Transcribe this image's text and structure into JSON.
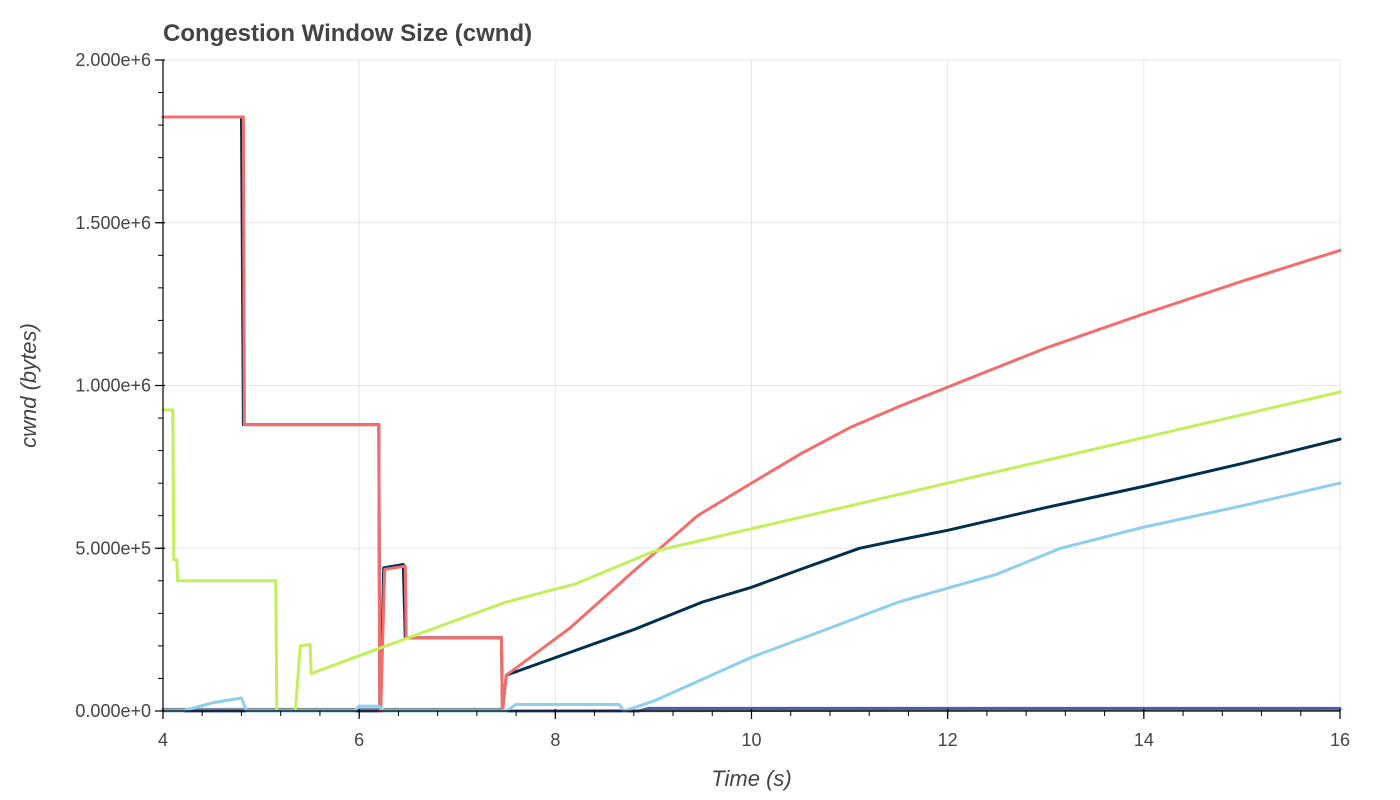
{
  "chart_data": {
    "type": "line",
    "title": "Congestion Window Size (cwnd)",
    "xlabel": "Time (s)",
    "ylabel": "cwnd (bytes)",
    "xlim": [
      4,
      16
    ],
    "ylim": [
      0,
      2000000
    ],
    "x_ticks": [
      4,
      6,
      8,
      10,
      12,
      14,
      16
    ],
    "x_tick_labels": [
      "4",
      "6",
      "8",
      "10",
      "12",
      "14",
      "16"
    ],
    "y_ticks": [
      0,
      500000,
      1000000,
      1500000,
      2000000
    ],
    "y_tick_labels": [
      "0.000e+0",
      "5.000e+5",
      "1.000e+6",
      "1.500e+6",
      "2.000e+6"
    ],
    "grid": true,
    "legend": "none",
    "series": [
      {
        "color": "#7f8c9a",
        "x": [
          4.0,
          7.45,
          7.46,
          16.0
        ],
        "y": [
          5000,
          5000,
          0,
          5000
        ]
      },
      {
        "color": "#4a5fa5",
        "x": [
          4.0,
          8.85,
          8.95,
          16.0
        ],
        "y": [
          0,
          0,
          8000,
          8000
        ]
      },
      {
        "color": "#003050",
        "x": [
          4.0,
          4.8,
          4.82,
          6.2,
          6.21,
          6.22,
          6.25,
          6.45,
          6.47,
          7.45,
          7.46,
          7.5,
          8.15,
          8.8,
          9.5,
          10.0,
          10.5,
          11.1,
          11.5,
          12.0,
          13.0,
          14.0,
          15.0,
          16.0
        ],
        "y": [
          1825000,
          1825000,
          880000,
          880000,
          0,
          0,
          440000,
          450000,
          225000,
          225000,
          0,
          110000,
          180000,
          250000,
          335000,
          380000,
          435000,
          500000,
          525000,
          555000,
          625000,
          690000,
          760000,
          835000
        ]
      },
      {
        "color": "#f46d6d",
        "x": [
          4.0,
          4.82,
          4.83,
          6.2,
          6.21,
          6.22,
          6.26,
          6.47,
          6.48,
          7.45,
          7.46,
          7.5,
          8.15,
          8.8,
          9.45,
          10.0,
          10.5,
          11.0,
          11.5,
          12.0,
          13.0,
          14.0,
          15.0,
          16.0
        ],
        "y": [
          1825000,
          1825000,
          880000,
          880000,
          0,
          0,
          435000,
          445000,
          225000,
          225000,
          0,
          110000,
          255000,
          430000,
          600000,
          700000,
          790000,
          870000,
          935000,
          995000,
          1115000,
          1220000,
          1320000,
          1415000
        ]
      },
      {
        "color": "#c2ef5a",
        "x": [
          4.0,
          4.1,
          4.11,
          4.14,
          4.15,
          5.15,
          5.16,
          5.35,
          5.4,
          5.5,
          5.51,
          6.0,
          6.5,
          7.0,
          7.5,
          8.2,
          9.0,
          10.0,
          11.0,
          12.0,
          13.0,
          14.0,
          15.0,
          16.0
        ],
        "y": [
          925000,
          925000,
          465000,
          465000,
          400000,
          400000,
          0,
          0,
          200000,
          205000,
          115000,
          170000,
          225000,
          280000,
          335000,
          390000,
          490000,
          560000,
          630000,
          700000,
          770000,
          840000,
          910000,
          980000
        ]
      },
      {
        "color": "#8ecfef",
        "x": [
          4.0,
          4.2,
          4.5,
          4.8,
          4.85,
          5.95,
          6.0,
          6.2,
          6.25,
          7.5,
          7.6,
          8.65,
          8.7,
          9.0,
          10.0,
          10.8,
          11.5,
          12.5,
          13.15,
          14.0,
          15.0,
          16.0
        ],
        "y": [
          0,
          0,
          25000,
          40000,
          0,
          0,
          15000,
          15000,
          0,
          0,
          20000,
          20000,
          0,
          30000,
          165000,
          255000,
          335000,
          420000,
          500000,
          565000,
          630000,
          700000
        ]
      }
    ]
  }
}
